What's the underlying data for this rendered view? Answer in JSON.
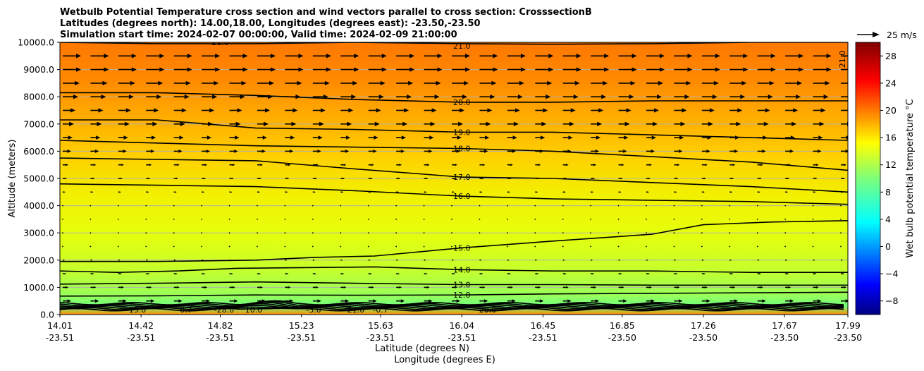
{
  "chart_data": {
    "type": "contour_cross_section",
    "title": [
      "Wetbulb Potential Temperature cross section and wind vectors parallel to cross section: CrosssectionB",
      "Latitudes (degrees north): 14.00,18.00, Longitudes (degrees east): -23.50,-23.50",
      "Simulation start time: 2024-02-07 00:00:00, Valid time: 2024-02-09 21:00:00"
    ],
    "ylabel": "Altitude (meters)",
    "xlabel_lat": "Latitude (degrees N)",
    "xlabel_lon": "Longitude (degrees E)",
    "ylim": [
      0,
      10000
    ],
    "y_ticks": [
      0,
      1000,
      2000,
      3000,
      4000,
      5000,
      6000,
      7000,
      8000,
      9000,
      10000
    ],
    "y_tick_labels": [
      "0.0",
      "1000.0",
      "2000.0",
      "3000.0",
      "4000.0",
      "5000.0",
      "6000.0",
      "7000.0",
      "8000.0",
      "9000.0",
      "10000.0"
    ],
    "x_range": [
      14.01,
      17.99
    ],
    "x_ticks_lat": [
      "14.01",
      "14.42",
      "14.82",
      "15.23",
      "15.63",
      "16.04",
      "16.45",
      "16.85",
      "17.26",
      "17.67",
      "17.99"
    ],
    "x_ticks_lon": [
      "-23.51",
      "-23.51",
      "-23.51",
      "-23.51",
      "-23.51",
      "-23.51",
      "-23.51",
      "-23.50",
      "-23.50",
      "-23.50",
      "-23.50"
    ],
    "x_tick_positions": [
      14.01,
      14.42,
      14.82,
      15.23,
      15.63,
      16.04,
      16.45,
      16.85,
      17.26,
      17.67,
      17.99
    ],
    "colorbar": {
      "label": "Wet bulb potential temperature $^\\circ$C",
      "label_text": "Wet bulb potential temperature °C",
      "range": [
        -10,
        30
      ],
      "ticks": [
        -8,
        -4,
        0,
        4,
        8,
        12,
        16,
        20,
        24,
        28
      ],
      "tick_labels": [
        "−8",
        "−4",
        "0",
        "4",
        "8",
        "12",
        "16",
        "20",
        "24",
        "28"
      ],
      "colormap": "jet"
    },
    "wind_key": {
      "label": "25 m/s",
      "speed": 25
    },
    "contours": [
      {
        "level": 12,
        "label": "12.0",
        "points": [
          [
            14.01,
            680
          ],
          [
            14.5,
            690
          ],
          [
            15.0,
            720
          ],
          [
            15.5,
            710
          ],
          [
            16.04,
            720
          ],
          [
            16.5,
            760
          ],
          [
            17.0,
            780
          ],
          [
            17.5,
            800
          ],
          [
            17.99,
            820
          ]
        ]
      },
      {
        "level": 13,
        "label": "13.0",
        "points": [
          [
            14.01,
            1120
          ],
          [
            14.5,
            1150
          ],
          [
            15.0,
            1200
          ],
          [
            15.5,
            1150
          ],
          [
            16.04,
            1100
          ],
          [
            16.5,
            1100
          ],
          [
            17.0,
            1080
          ],
          [
            17.5,
            1080
          ],
          [
            17.99,
            1080
          ]
        ]
      },
      {
        "level": 14,
        "label": "14.0",
        "points": [
          [
            14.01,
            1600
          ],
          [
            14.3,
            1550
          ],
          [
            14.6,
            1600
          ],
          [
            14.9,
            1700
          ],
          [
            15.2,
            1720
          ],
          [
            15.6,
            1750
          ],
          [
            16.04,
            1650
          ],
          [
            16.5,
            1600
          ],
          [
            17.0,
            1600
          ],
          [
            17.5,
            1550
          ],
          [
            17.99,
            1550
          ]
        ]
      },
      {
        "level": 15,
        "label": "15.0",
        "points": [
          [
            14.01,
            1950
          ],
          [
            14.5,
            1950
          ],
          [
            15.0,
            2000
          ],
          [
            15.3,
            2100
          ],
          [
            15.6,
            2150
          ],
          [
            16.04,
            2450
          ],
          [
            16.5,
            2700
          ],
          [
            17.0,
            2950
          ],
          [
            17.26,
            3300
          ],
          [
            17.6,
            3400
          ],
          [
            17.99,
            3450
          ]
        ]
      },
      {
        "level": 16,
        "label": "16.0",
        "points": [
          [
            14.01,
            4800
          ],
          [
            14.5,
            4750
          ],
          [
            15.0,
            4700
          ],
          [
            15.5,
            4550
          ],
          [
            16.04,
            4350
          ],
          [
            16.5,
            4250
          ],
          [
            17.0,
            4200
          ],
          [
            17.5,
            4150
          ],
          [
            17.99,
            4050
          ]
        ]
      },
      {
        "level": 17,
        "label": "17.0",
        "points": [
          [
            14.01,
            5750
          ],
          [
            14.5,
            5700
          ],
          [
            15.0,
            5650
          ],
          [
            15.5,
            5350
          ],
          [
            16.04,
            5050
          ],
          [
            16.5,
            5000
          ],
          [
            17.0,
            4850
          ],
          [
            17.5,
            4700
          ],
          [
            17.99,
            4500
          ]
        ]
      },
      {
        "level": 18,
        "label": "18.0",
        "points": [
          [
            14.01,
            6400
          ],
          [
            14.5,
            6300
          ],
          [
            15.0,
            6200
          ],
          [
            15.5,
            6150
          ],
          [
            16.04,
            6100
          ],
          [
            16.5,
            6000
          ],
          [
            17.0,
            5800
          ],
          [
            17.5,
            5600
          ],
          [
            17.99,
            5300
          ]
        ]
      },
      {
        "level": 19,
        "label": "19.0",
        "points": [
          [
            14.01,
            7150
          ],
          [
            14.5,
            7150
          ],
          [
            15.0,
            6850
          ],
          [
            15.5,
            6800
          ],
          [
            16.04,
            6700
          ],
          [
            16.5,
            6700
          ],
          [
            17.0,
            6600
          ],
          [
            17.5,
            6500
          ],
          [
            17.99,
            6400
          ]
        ]
      },
      {
        "level": 20,
        "label": "20.0",
        "points": [
          [
            14.01,
            8150
          ],
          [
            14.5,
            8150
          ],
          [
            15.0,
            8050
          ],
          [
            15.5,
            7900
          ],
          [
            16.04,
            7800
          ],
          [
            16.5,
            7800
          ],
          [
            17.0,
            7850
          ],
          [
            17.5,
            7850
          ],
          [
            17.99,
            7850
          ]
        ]
      },
      {
        "level": 21,
        "label": "21.0",
        "points": [
          [
            14.01,
            10000
          ],
          [
            14.5,
            9950
          ],
          [
            15.0,
            9950
          ],
          [
            15.5,
            10000
          ],
          [
            16.04,
            9950
          ],
          [
            16.5,
            9930
          ],
          [
            17.0,
            9950
          ],
          [
            17.5,
            10000
          ],
          [
            17.99,
            10000
          ]
        ]
      }
    ],
    "surface_contour_labels": [
      "15.0",
      "-0.7",
      "-28.0",
      "10.0",
      "-3.0",
      "21.0",
      "-0.7",
      "-20.0"
    ],
    "right_edge_label": "21.0"
  }
}
